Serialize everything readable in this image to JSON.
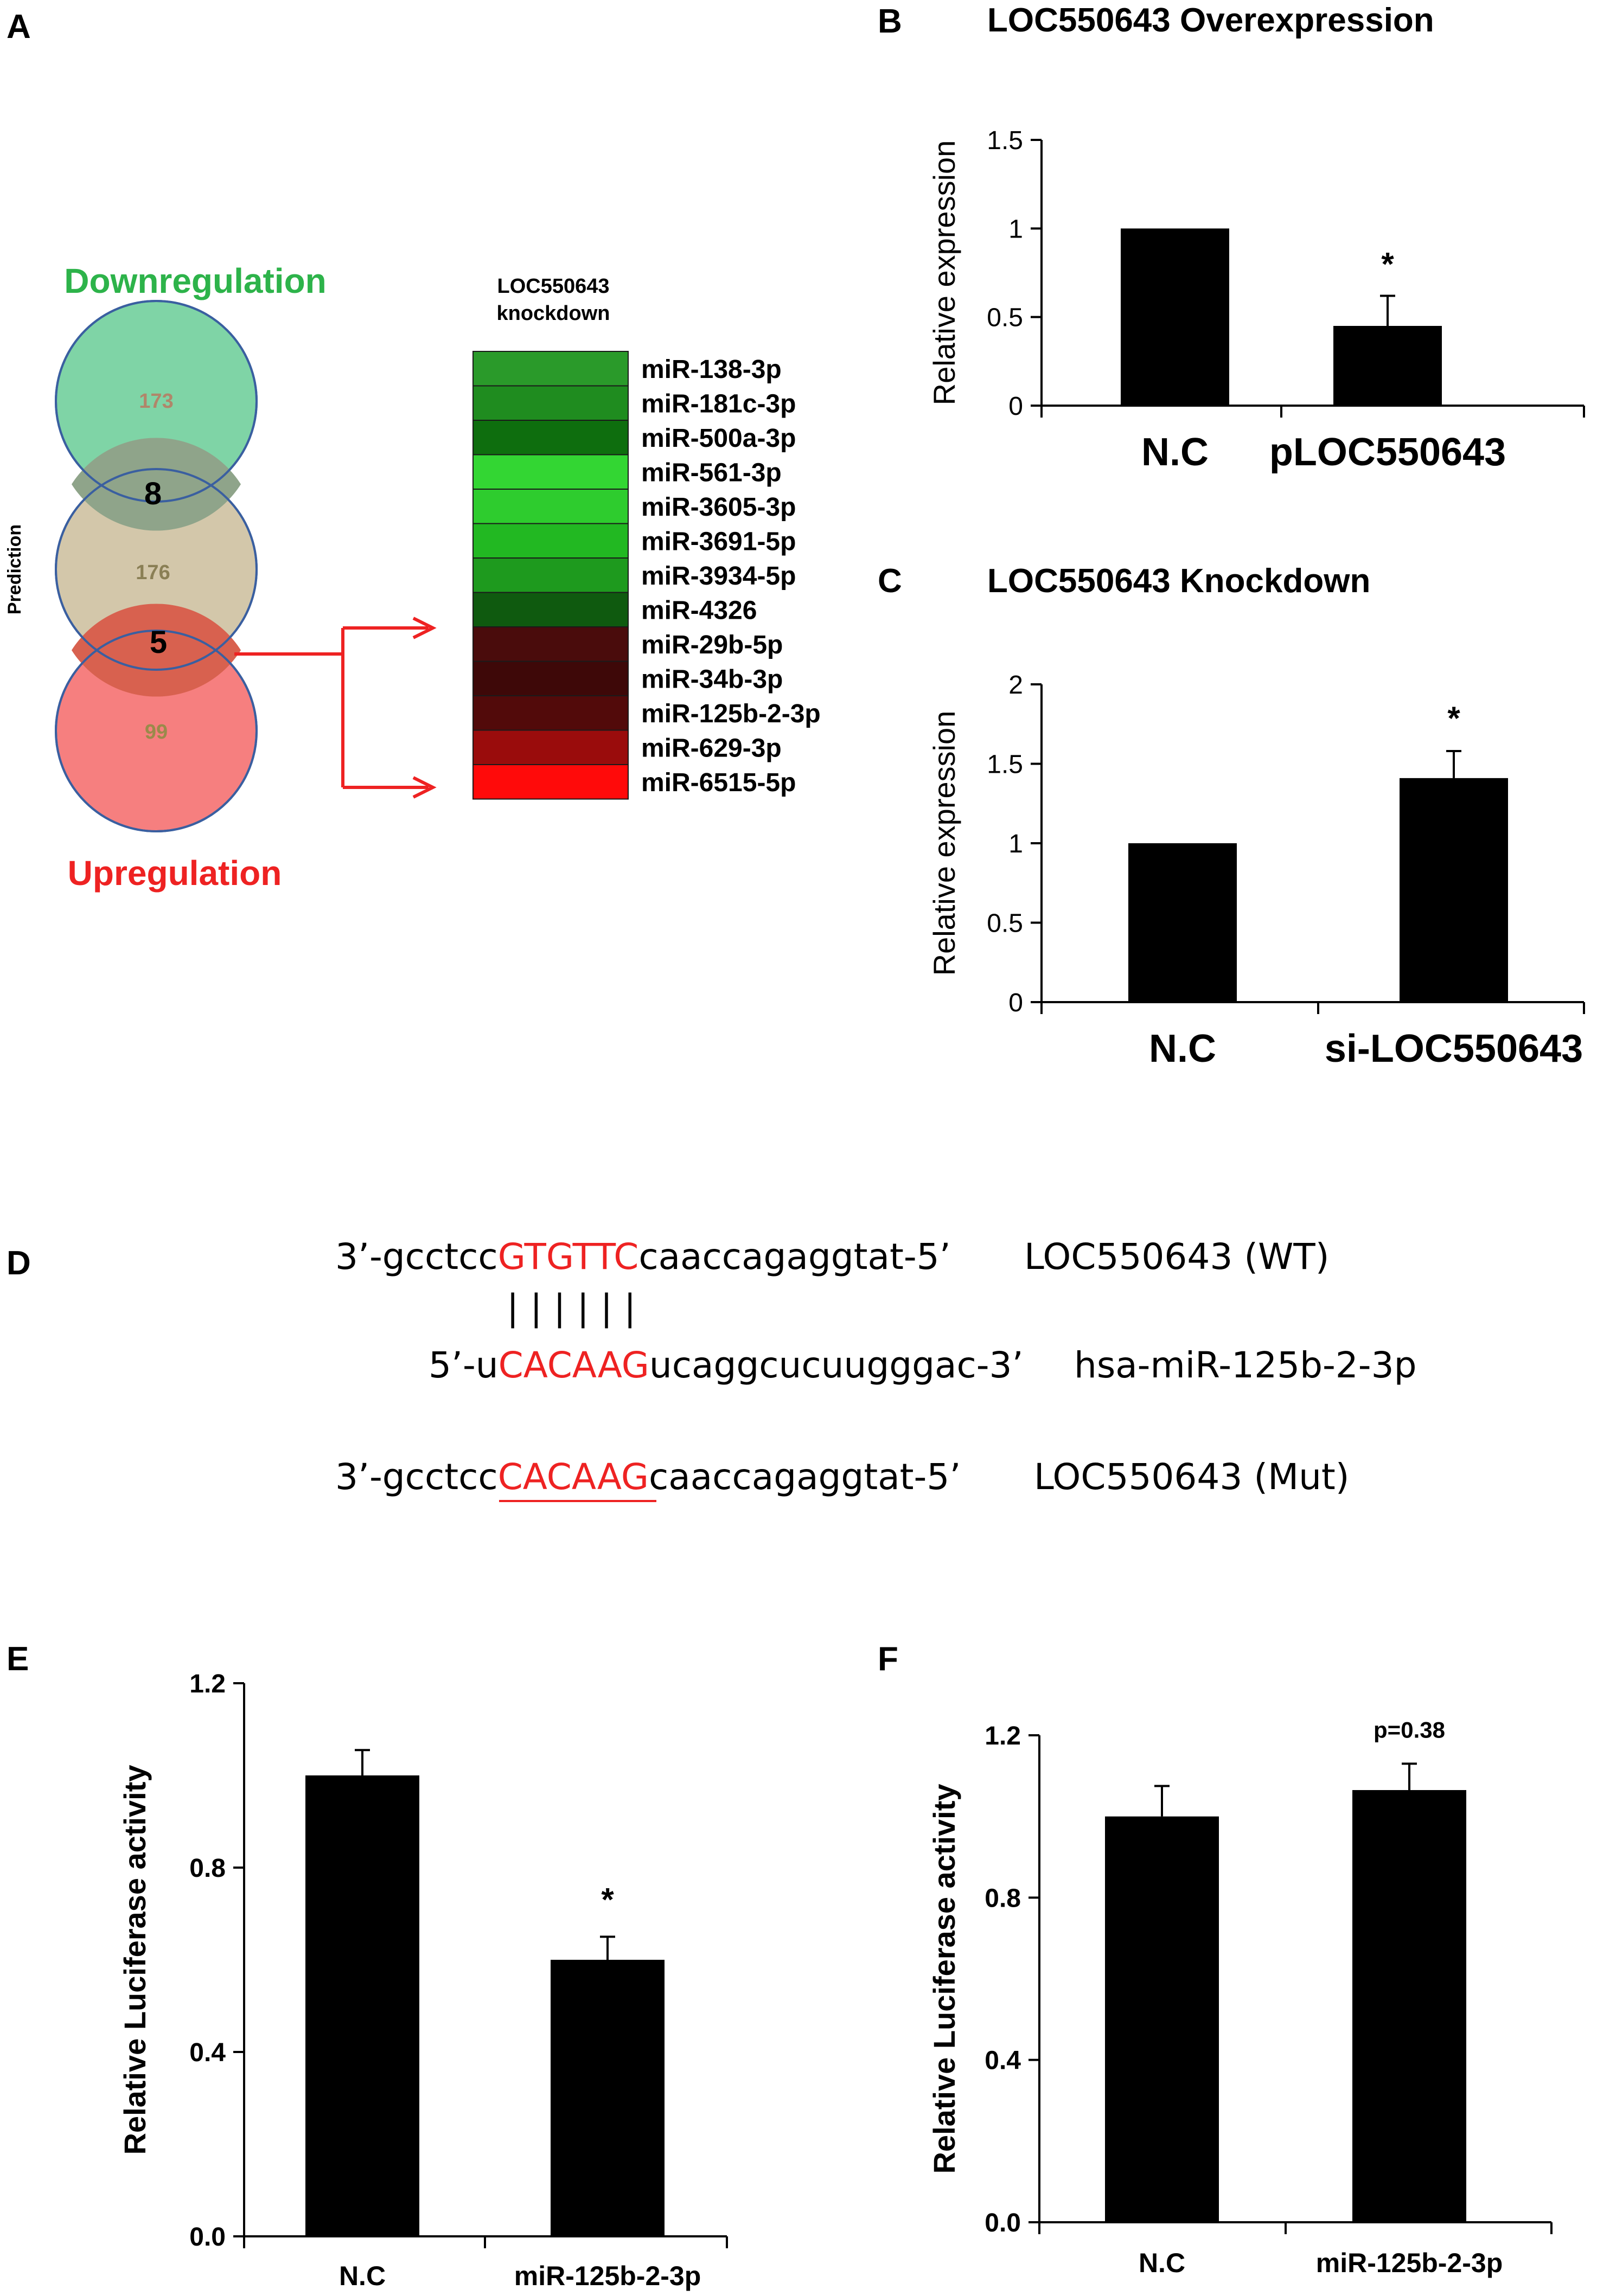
{
  "panels": {
    "A": "A",
    "B": "B",
    "C": "C",
    "D": "D",
    "E": "E",
    "F": "F"
  },
  "venn": {
    "title_down": "Downregulation",
    "title_up": "Upregulation",
    "side_label": "Prediction",
    "counts": {
      "down_only": "173",
      "down_pred": "8",
      "pred_only": "176",
      "pred_up": "5",
      "up_only": "99"
    },
    "colors": {
      "down": "#7fd4a6",
      "pred": "#cfc2a3",
      "up": "#f57474",
      "down_title": "#2db34a",
      "up_title": "#ee2222",
      "arrow": "#ee2222"
    }
  },
  "heatmap": {
    "header_line1": "LOC550643",
    "header_line2": "knockdown",
    "rows": [
      {
        "label": "miR-138-3p",
        "color": "#2a9a2a"
      },
      {
        "label": "miR-181c-3p",
        "color": "#1f8c1f"
      },
      {
        "label": "miR-500a-3p",
        "color": "#0e6e0e"
      },
      {
        "label": "miR-561-3p",
        "color": "#33d633"
      },
      {
        "label": "miR-3605-3p",
        "color": "#2ecc2e"
      },
      {
        "label": "miR-3691-5p",
        "color": "#22b822"
      },
      {
        "label": "miR-3934-5p",
        "color": "#1e9a1e"
      },
      {
        "label": "miR-4326",
        "color": "#0f5a0f"
      },
      {
        "label": "miR-29b-5p",
        "color": "#4a0c0c"
      },
      {
        "label": "miR-34b-3p",
        "color": "#3e0808"
      },
      {
        "label": "miR-125b-2-3p",
        "color": "#520a0a"
      },
      {
        "label": "miR-629-3p",
        "color": "#9a0c0c"
      },
      {
        "label": "miR-6515-5p",
        "color": "#ff0a0a"
      }
    ]
  },
  "sequence": {
    "wt_prefix": "3’-gcctcc",
    "wt_seed": "GTGTTC",
    "wt_suffix": "caaccagaggtat-5’",
    "wt_label": "LOC550643 (WT)",
    "pairing": "| | | | | |",
    "mir_prefix": "5’-u",
    "mir_seed": "CACAAG",
    "mir_suffix": "ucaggcucuugggac-3’",
    "mir_label": "hsa-miR-125b-2-3p",
    "mut_prefix": "3’-gcctcc",
    "mut_seed": "CACAAG",
    "mut_suffix": "caaccagaggtat-5’",
    "mut_label": "LOC550643 (Mut)",
    "seed_color": "#ee2222"
  },
  "chart_data": [
    {
      "id": "B",
      "type": "bar",
      "title": "LOC550643 Overexpression",
      "categories": [
        "N.C",
        "pLOC550643"
      ],
      "values": [
        1.0,
        0.45
      ],
      "errors": [
        0.0,
        0.17
      ],
      "ylabel": "Relative expression",
      "ylim": [
        0,
        1.5
      ],
      "yticks": [
        "0",
        "0.5",
        "1",
        "1.5"
      ],
      "yvals": [
        0,
        0.5,
        1,
        1.5
      ],
      "annotations": [
        "",
        "*"
      ]
    },
    {
      "id": "C",
      "type": "bar",
      "title": "LOC550643 Knockdown",
      "categories": [
        "N.C",
        "si-LOC550643"
      ],
      "values": [
        1.0,
        1.41
      ],
      "errors": [
        0.0,
        0.17
      ],
      "ylabel": "Relative expression",
      "ylim": [
        0,
        2
      ],
      "yticks": [
        "0",
        "0.5",
        "1",
        "1.5",
        "2"
      ],
      "yvals": [
        0,
        0.5,
        1,
        1.5,
        2
      ],
      "annotations": [
        "",
        "*"
      ]
    },
    {
      "id": "E",
      "type": "bar",
      "title": "",
      "categories": [
        "N.C",
        "miR-125b-2-3p"
      ],
      "values": [
        1.0,
        0.6
      ],
      "errors": [
        0.055,
        0.05
      ],
      "ylabel": "Relative Luciferase activity",
      "ylim": [
        0,
        1.2
      ],
      "yticks": [
        "0.0",
        "0.4",
        "0.8",
        "1.2"
      ],
      "yvals": [
        0,
        0.4,
        0.8,
        1.2
      ],
      "annotations": [
        "",
        "*"
      ]
    },
    {
      "id": "F",
      "type": "bar",
      "title": "",
      "categories": [
        "N.C",
        "miR-125b-2-3p"
      ],
      "values": [
        1.0,
        1.065
      ],
      "errors": [
        0.075,
        0.065
      ],
      "ylabel": "Relative Luciferase activity",
      "ylim": [
        0,
        1.2
      ],
      "yticks": [
        "0.0",
        "0.4",
        "0.8",
        "1.2"
      ],
      "yvals": [
        0,
        0.4,
        0.8,
        1.2
      ],
      "annotations": [
        "",
        "p=0.38"
      ]
    }
  ]
}
